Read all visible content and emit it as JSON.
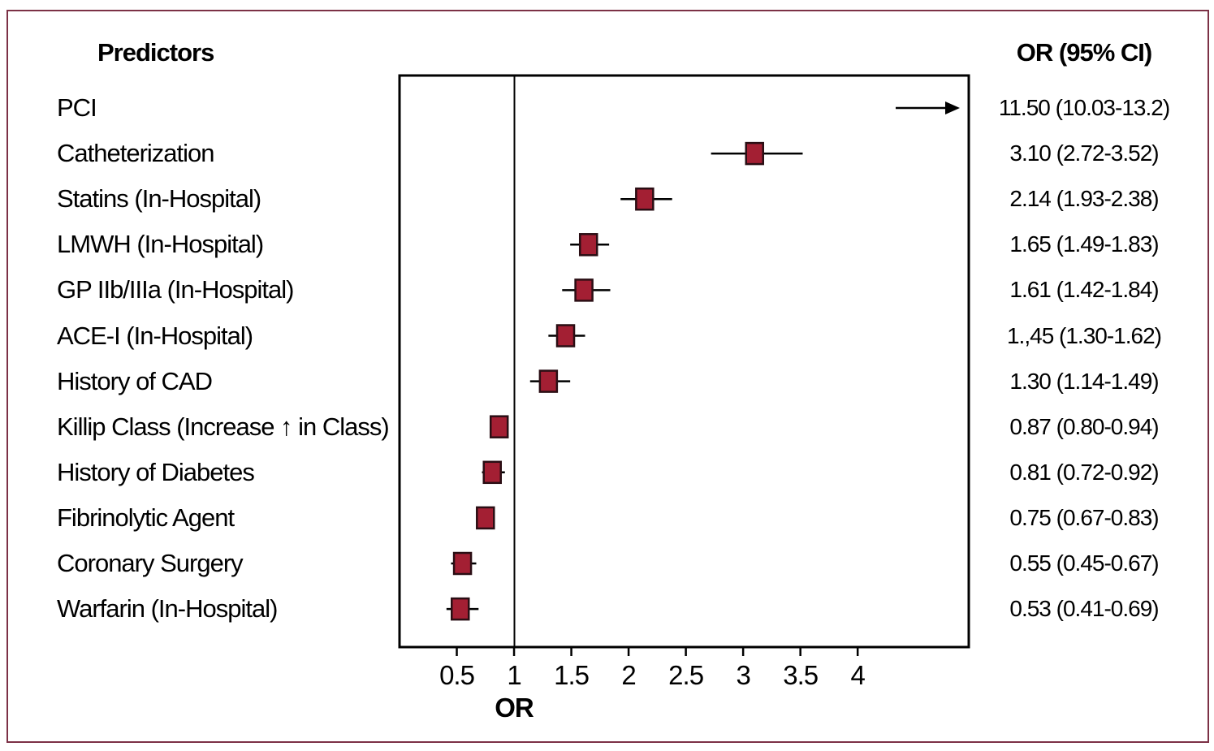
{
  "header": {
    "predictors_label": "Predictors",
    "or_ci_label": "OR (95% CI)"
  },
  "chart_data": {
    "type": "forest",
    "xlabel": "OR",
    "x_ticks": [
      0.5,
      1,
      1.5,
      2,
      2.5,
      3,
      3.5,
      4
    ],
    "x_range": [
      0,
      4.97
    ],
    "reference_line": 1,
    "grid": false,
    "rows": [
      {
        "label": "PCI",
        "or": 11.5,
        "ci_low": 10.03,
        "ci_high": 13.2,
        "display": "11.50 (10.03-13.2)",
        "offscale": true
      },
      {
        "label": "Catheterization",
        "or": 3.1,
        "ci_low": 2.72,
        "ci_high": 3.52,
        "display": "3.10 (2.72-3.52)"
      },
      {
        "label": "Statins (In-Hospital)",
        "or": 2.14,
        "ci_low": 1.93,
        "ci_high": 2.38,
        "display": "2.14 (1.93-2.38)"
      },
      {
        "label": "LMWH (In-Hospital)",
        "or": 1.65,
        "ci_low": 1.49,
        "ci_high": 1.83,
        "display": "1.65 (1.49-1.83)"
      },
      {
        "label": "GP IIb/IIIa (In-Hospital)",
        "or": 1.61,
        "ci_low": 1.42,
        "ci_high": 1.84,
        "display": "1.61 (1.42-1.84)"
      },
      {
        "label": "ACE-I (In-Hospital)",
        "or": 1.45,
        "ci_low": 1.3,
        "ci_high": 1.62,
        "display": "1.,45 (1.30-1.62)"
      },
      {
        "label": "History of CAD",
        "or": 1.3,
        "ci_low": 1.14,
        "ci_high": 1.49,
        "display": "1.30 (1.14-1.49)"
      },
      {
        "label": "Killip Class (Increase ↑ in Class)",
        "or": 0.87,
        "ci_low": 0.8,
        "ci_high": 0.94,
        "display": "0.87 (0.80-0.94)"
      },
      {
        "label": "History of Diabetes",
        "or": 0.81,
        "ci_low": 0.72,
        "ci_high": 0.92,
        "display": "0.81 (0.72-0.92)"
      },
      {
        "label": "Fibrinolytic Agent",
        "or": 0.75,
        "ci_low": 0.67,
        "ci_high": 0.83,
        "display": "0.75 (0.67-0.83)"
      },
      {
        "label": "Coronary Surgery",
        "or": 0.55,
        "ci_low": 0.45,
        "ci_high": 0.67,
        "display": "0.55 (0.45-0.67)"
      },
      {
        "label": "Warfarin (In-Hospital)",
        "or": 0.53,
        "ci_low": 0.41,
        "ci_high": 0.69,
        "display": "0.53 (0.41-0.69)"
      }
    ]
  },
  "colors": {
    "marker_fill": "#a31f33",
    "marker_stroke": "#2a0e14",
    "frame": "#7c3146",
    "axis": "#000000"
  }
}
